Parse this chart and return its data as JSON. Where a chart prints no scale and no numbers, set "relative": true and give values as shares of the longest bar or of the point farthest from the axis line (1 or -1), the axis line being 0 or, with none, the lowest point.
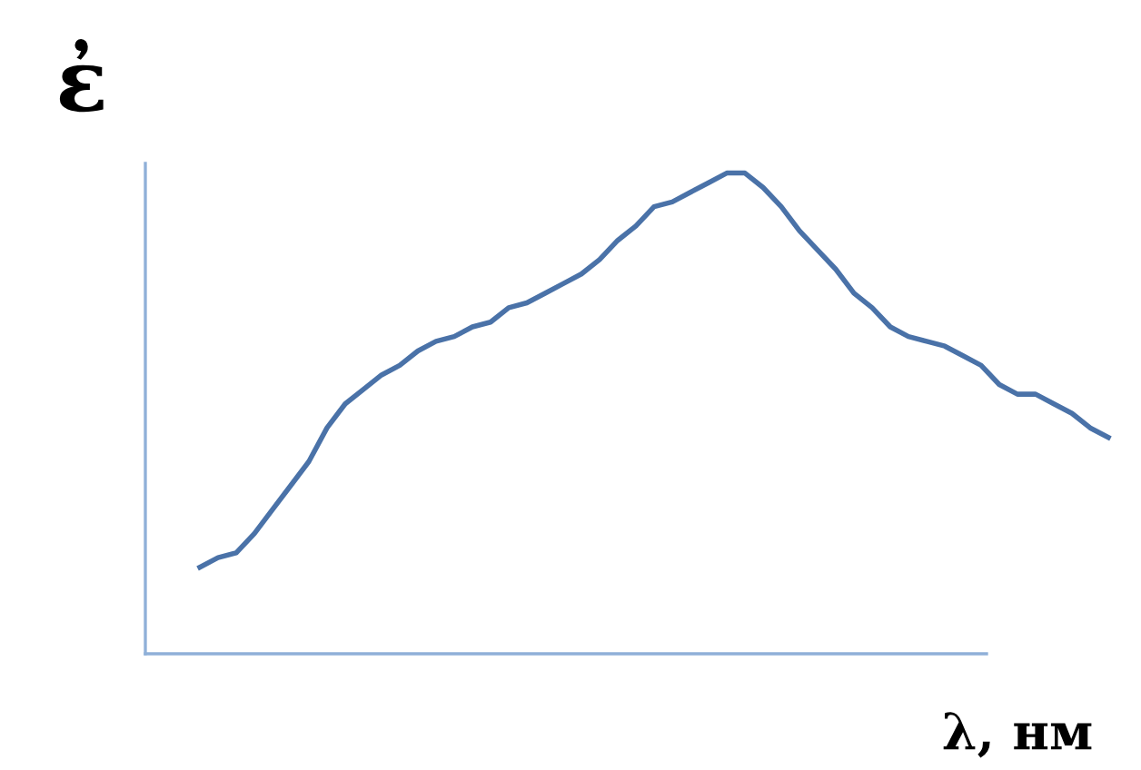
{
  "chart_data": {
    "type": "line",
    "relative": true,
    "xlabel": "λ, нм",
    "ylabel": "ἐ",
    "grid": false,
    "legend": false,
    "categories": [
      null,
      null,
      null,
      null,
      null,
      null,
      null,
      null,
      null,
      null,
      null,
      null,
      null,
      null,
      null,
      null,
      null,
      null,
      null,
      null,
      null,
      null,
      null,
      null,
      null,
      null,
      null,
      null,
      null,
      null,
      null,
      null,
      null,
      null,
      null,
      null,
      null,
      null,
      null,
      null,
      null,
      null,
      null,
      null,
      null,
      null,
      null,
      null,
      null,
      null,
      null
    ],
    "series": [
      {
        "color": "#4a72a8",
        "values": [
          0.18,
          0.2,
          0.21,
          0.25,
          0.3,
          0.35,
          0.4,
          0.47,
          0.52,
          0.55,
          0.58,
          0.6,
          0.63,
          0.65,
          0.66,
          0.68,
          0.69,
          0.72,
          0.73,
          0.75,
          0.77,
          0.79,
          0.82,
          0.86,
          0.89,
          0.93,
          0.94,
          0.96,
          0.98,
          1.0,
          1.0,
          0.97,
          0.93,
          0.88,
          0.84,
          0.8,
          0.75,
          0.72,
          0.68,
          0.66,
          0.65,
          0.64,
          0.62,
          0.6,
          0.56,
          0.54,
          0.54,
          0.52,
          0.5,
          0.47,
          0.45
        ]
      }
    ]
  }
}
